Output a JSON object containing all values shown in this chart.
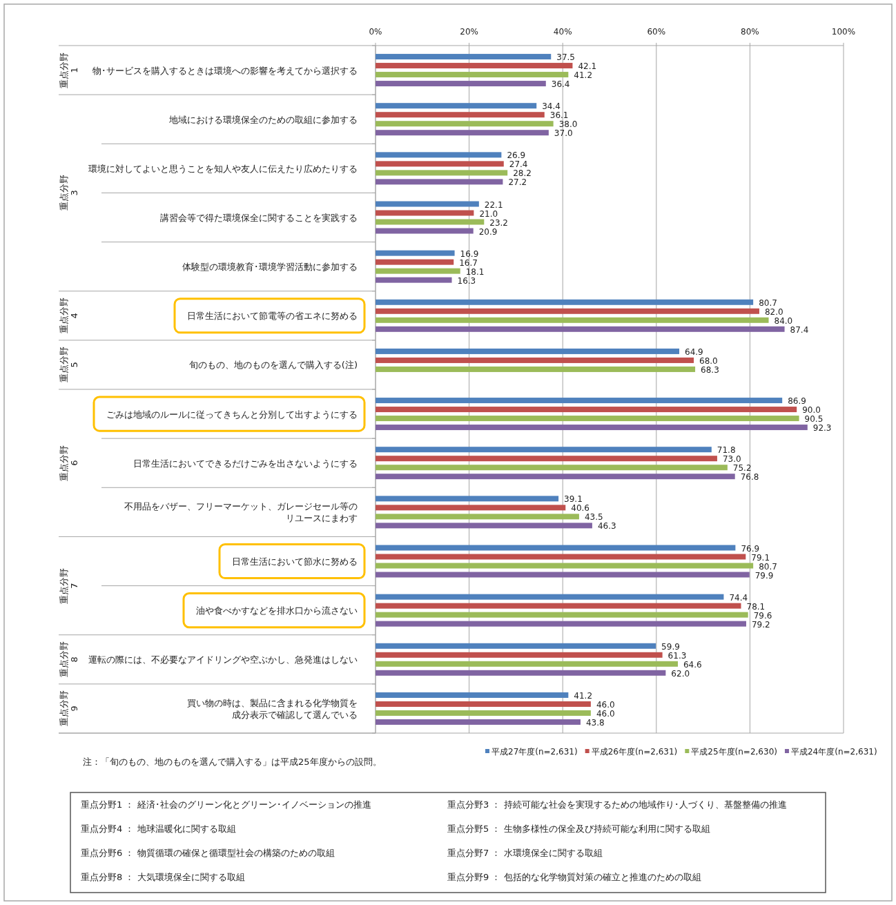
{
  "chart_data": {
    "type": "bar",
    "orientation": "horizontal",
    "categories": [
      "物･サービスを購入するときは環境への影響を考えてから選択する",
      "地域における環境保全のための取組に参加する",
      "環境に対してよいと思うことを知人や友人に伝えたり広めたりする",
      "講習会等で得た環境保全に関することを実践する",
      "体験型の環境教育･環境学習活動に参加する",
      "日常生活において節電等の省エネに努める",
      "旬のもの、地のものを選んで購入する(注)",
      "ごみは地域のルールに従ってきちんと分別して出すようにする",
      "日常生活においてできるだけごみを出さないようにする",
      "不用品をバザー、フリーマーケット、ガレージセール等のリユースにまわす",
      "日常生活において節水に努める",
      "油や食べかすなどを排水口から流さない",
      "運転の際には、不必要なアイドリングや空ぶかし、急発進はしない",
      "買い物の時は、製品に含まれる化学物質を成分表示で確認して選んでいる"
    ],
    "series": [
      {
        "name": "平成27年度(n=2,631)",
        "color": "#4f81bd",
        "values": [
          37.5,
          34.4,
          26.9,
          22.1,
          16.9,
          80.7,
          64.9,
          86.9,
          71.8,
          39.1,
          76.9,
          74.4,
          59.9,
          41.2
        ],
        "value_labels": [
          "37.5",
          "34.4",
          "26.9",
          "22.1",
          "16.9",
          "80.7",
          "64.9",
          "86.9",
          "71.8",
          "39.1",
          "76.9",
          "74.4",
          "59.9",
          "41.2"
        ]
      },
      {
        "name": "平成26年度(n=2,631)",
        "color": "#c0504d",
        "values": [
          42.1,
          36.1,
          27.4,
          21.0,
          16.7,
          82.0,
          68.0,
          90.0,
          73.0,
          40.6,
          79.1,
          78.1,
          61.3,
          46.0
        ],
        "value_labels": [
          "42.1",
          "36.1",
          "27.4",
          "21.0",
          "16.7",
          "82.0",
          "68.0",
          "90.0",
          "73.0",
          "40.6",
          "79.1",
          "78.1",
          "61.3",
          "46.0"
        ]
      },
      {
        "name": "平成25年度(n=2,630)",
        "color": "#9bbb59",
        "values": [
          41.2,
          38.0,
          28.2,
          23.2,
          18.1,
          84.0,
          68.3,
          90.5,
          75.2,
          43.5,
          80.7,
          79.6,
          64.6,
          46.0
        ],
        "value_labels": [
          "41.2",
          "38.0",
          "28.2",
          "23.2",
          "18.1",
          "84.0",
          "68.3",
          "90.5",
          "75.2",
          "43.5",
          "80.7",
          "79.6",
          "64.6",
          "46.0"
        ]
      },
      {
        "name": "平成24年度(n=2,631)",
        "color": "#8064a2",
        "values": [
          36.4,
          37.0,
          27.2,
          20.9,
          16.3,
          87.4,
          null,
          92.3,
          76.8,
          46.3,
          79.9,
          79.2,
          62.0,
          43.8
        ],
        "value_labels": [
          "36.4",
          "37.0",
          "27.2",
          "20.9",
          "16.3",
          "87.4",
          null,
          "92.3",
          "76.8",
          "46.3",
          "79.9",
          "79.2",
          "62.0",
          "43.8"
        ]
      }
    ],
    "xlim": [
      0,
      100
    ],
    "xticks": [
      {
        "value": 0,
        "label": "0%"
      },
      {
        "value": 20,
        "label": "20%"
      },
      {
        "value": 40,
        "label": "40%"
      },
      {
        "value": 60,
        "label": "60%"
      },
      {
        "value": 80,
        "label": "80%"
      },
      {
        "value": 100,
        "label": "100%"
      }
    ],
    "grid": "x",
    "legend": "bottom right",
    "annotations": [
      "注：「旬のもの、地のものを選んで購入する」は平成25年度からの設問。",
      "重点分野1 ： 経済･社会のグリーン化とグリーン･イノベーションの推進",
      "重点分野3 ： 持続可能な社会を実現するための地域作り･人づくり、基盤整備の推進",
      "重点分野4 ： 地球温暖化に関する取組",
      "重点分野5 ： 生物多様性の保全及び持続可能な利用に関する取組",
      "重点分野6 ： 物質循環の確保と循環型社会の構築のための取組",
      "重点分野7 ： 水環境保全に関する取組",
      "重点分野8 ： 大気環境保全に関する取組",
      "重点分野9 ： 包括的な化学物質対策の確立と推進のための取組",
      "重点分野 1",
      "重点分野 3",
      "重点分野 4",
      "重点分野 5",
      "重点分野 6",
      "重点分野 7",
      "重点分野 8",
      "重点分野 9"
    ]
  }
}
